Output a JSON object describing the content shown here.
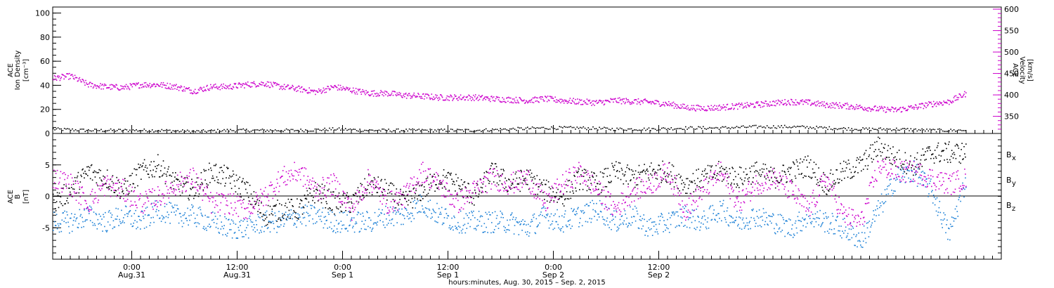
{
  "chart_data": [
    {
      "type": "scatter",
      "panel": "top",
      "left_axis": {
        "label_lines": [
          "ACE",
          "Ion Density",
          "[cm⁻³]"
        ],
        "ylim": [
          0,
          105
        ],
        "ticks": [
          0,
          20,
          40,
          60,
          80,
          100
        ],
        "tick_labels": [
          "0",
          "20",
          "40",
          "60",
          "80",
          "100"
        ]
      },
      "right_axis": {
        "label_lines": [
          "ACE",
          "Velocity",
          "[km/s]"
        ],
        "ylim": [
          310,
          605
        ],
        "ticks": [
          350,
          400,
          450,
          500,
          550,
          600
        ],
        "tick_labels": [
          "350",
          "400",
          "450",
          "500",
          "550",
          "600"
        ],
        "color": "#cc00cc"
      },
      "series": [
        {
          "axis": "left",
          "color": "#000000",
          "x": [
            0,
            4,
            8,
            12,
            16,
            20,
            24,
            28,
            32,
            36,
            40,
            44,
            48,
            52,
            56,
            60,
            64,
            68,
            72,
            76,
            80,
            84,
            88,
            92,
            96,
            100,
            104
          ],
          "y": [
            4,
            3,
            3,
            3,
            2,
            3,
            3,
            3,
            4,
            3,
            3,
            3,
            3,
            4,
            5,
            5,
            4,
            4,
            5,
            5,
            6,
            6,
            5,
            4,
            4,
            3,
            3
          ]
        },
        {
          "axis": "right",
          "color": "#cc00cc",
          "x": [
            0,
            2,
            4,
            6,
            8,
            10,
            12,
            14,
            16,
            18,
            20,
            22,
            24,
            26,
            28,
            30,
            32,
            34,
            36,
            38,
            40,
            42,
            44,
            46,
            48,
            50,
            52,
            54,
            56,
            58,
            60,
            62,
            64,
            66,
            68,
            70,
            72,
            74,
            76,
            78,
            80,
            82,
            84,
            86,
            88,
            90,
            92,
            94,
            96,
            98,
            100,
            102,
            104
          ],
          "y": [
            440,
            445,
            425,
            420,
            418,
            425,
            425,
            420,
            410,
            420,
            420,
            425,
            428,
            420,
            415,
            408,
            420,
            412,
            405,
            405,
            400,
            398,
            395,
            395,
            395,
            392,
            390,
            388,
            392,
            388,
            385,
            383,
            388,
            386,
            384,
            380,
            372,
            370,
            372,
            375,
            378,
            382,
            385,
            383,
            378,
            376,
            372,
            368,
            366,
            372,
            380,
            385,
            405
          ]
        }
      ]
    },
    {
      "type": "scatter",
      "panel": "bottom",
      "left_axis": {
        "label_lines": [
          "ACE",
          "B",
          "[nT]"
        ],
        "ylim": [
          -10,
          10
        ],
        "ticks": [
          -5,
          0,
          5
        ],
        "tick_labels": [
          "-5",
          "0",
          "5"
        ]
      },
      "legend": {
        "placement": "right",
        "entries": [
          {
            "name": "B",
            "sub": "x",
            "color": "#000000"
          },
          {
            "name": "B",
            "sub": "y",
            "color": "#1a7fd6"
          },
          {
            "name": "B",
            "sub": "z",
            "color": "#cc00cc"
          }
        ]
      },
      "series": [
        {
          "name": "Bx",
          "color": "#000000",
          "x": [
            0,
            2,
            4,
            6,
            8,
            10,
            12,
            14,
            16,
            18,
            20,
            22,
            24,
            26,
            28,
            30,
            32,
            34,
            36,
            38,
            40,
            42,
            44,
            46,
            48,
            50,
            52,
            54,
            56,
            58,
            60,
            62,
            64,
            66,
            68,
            70,
            72,
            74,
            76,
            78,
            80,
            82,
            84,
            86,
            88,
            90,
            92,
            94,
            96,
            98,
            100,
            102,
            104
          ],
          "y": [
            -1,
            1,
            4,
            3,
            1,
            4,
            5,
            2,
            1,
            4,
            3,
            1,
            -3,
            -2,
            -2,
            1,
            -1,
            -1,
            2,
            1,
            -1,
            1,
            3,
            2,
            0,
            4,
            2,
            3,
            1,
            0,
            3,
            2,
            4,
            3,
            4,
            4,
            2,
            3,
            4,
            3,
            4,
            3,
            4,
            5,
            2,
            4,
            5,
            8,
            6,
            5,
            7,
            7,
            7
          ]
        },
        {
          "name": "By",
          "color": "#1a7fd6",
          "x": [
            0,
            2,
            4,
            6,
            8,
            10,
            12,
            14,
            16,
            18,
            20,
            22,
            24,
            26,
            28,
            30,
            32,
            34,
            36,
            38,
            40,
            42,
            44,
            46,
            48,
            50,
            52,
            54,
            56,
            58,
            60,
            62,
            64,
            66,
            68,
            70,
            72,
            74,
            76,
            78,
            80,
            82,
            84,
            86,
            88,
            90,
            92,
            94,
            96,
            98,
            100,
            102,
            104
          ],
          "y": [
            -4,
            -4,
            -3,
            -4,
            -3,
            -4,
            -2,
            -3,
            -3,
            -4,
            -5,
            -5,
            -4,
            -4,
            -3,
            -3,
            -4,
            -4,
            -4,
            -3,
            -3,
            -1,
            -3,
            -4,
            -4,
            -4,
            -4,
            -5,
            -3,
            -4,
            -3,
            -2,
            -4,
            -3,
            -5,
            -4,
            -3,
            -4,
            -2,
            -4,
            -3,
            -4,
            -5,
            -3,
            -4,
            -5,
            -7,
            -2,
            3,
            4,
            1,
            -6,
            3
          ]
        },
        {
          "name": "Bz",
          "color": "#cc00cc",
          "x": [
            0,
            2,
            4,
            6,
            8,
            10,
            12,
            14,
            16,
            18,
            20,
            22,
            24,
            26,
            28,
            30,
            32,
            34,
            36,
            38,
            40,
            42,
            44,
            46,
            48,
            50,
            52,
            54,
            56,
            58,
            60,
            62,
            64,
            66,
            68,
            70,
            72,
            74,
            76,
            78,
            80,
            82,
            84,
            86,
            88,
            90,
            92,
            94,
            96,
            98,
            100,
            102,
            104
          ],
          "y": [
            3,
            2,
            -1,
            2,
            1,
            -1,
            0,
            2,
            3,
            -1,
            -1,
            -2,
            0,
            3,
            4,
            1,
            2,
            -2,
            3,
            -1,
            0,
            4,
            2,
            -1,
            1,
            3,
            2,
            3,
            -1,
            2,
            4,
            1,
            -2,
            1,
            2,
            4,
            -2,
            1,
            4,
            -1,
            2,
            3,
            1,
            -2,
            3,
            -3,
            -4,
            5,
            4,
            4,
            3,
            2,
            3
          ]
        }
      ]
    }
  ],
  "x_axis": {
    "xlim": [
      0,
      108
    ],
    "major_ticks": [
      {
        "x": 9,
        "top": "0:00",
        "bottom": "Aug.31"
      },
      {
        "x": 21,
        "top": "12:00",
        "bottom": "Aug.31"
      },
      {
        "x": 33,
        "top": "0:00",
        "bottom": "Sep 1"
      },
      {
        "x": 45,
        "top": "12:00",
        "bottom": "Sep 1"
      },
      {
        "x": 57,
        "top": "0:00",
        "bottom": "Sep 2"
      },
      {
        "x": 69,
        "top": "12:00",
        "bottom": "Sep 2"
      }
    ],
    "title": "hours:minutes, Aug. 30, 2015 – Sep.  2, 2015"
  }
}
